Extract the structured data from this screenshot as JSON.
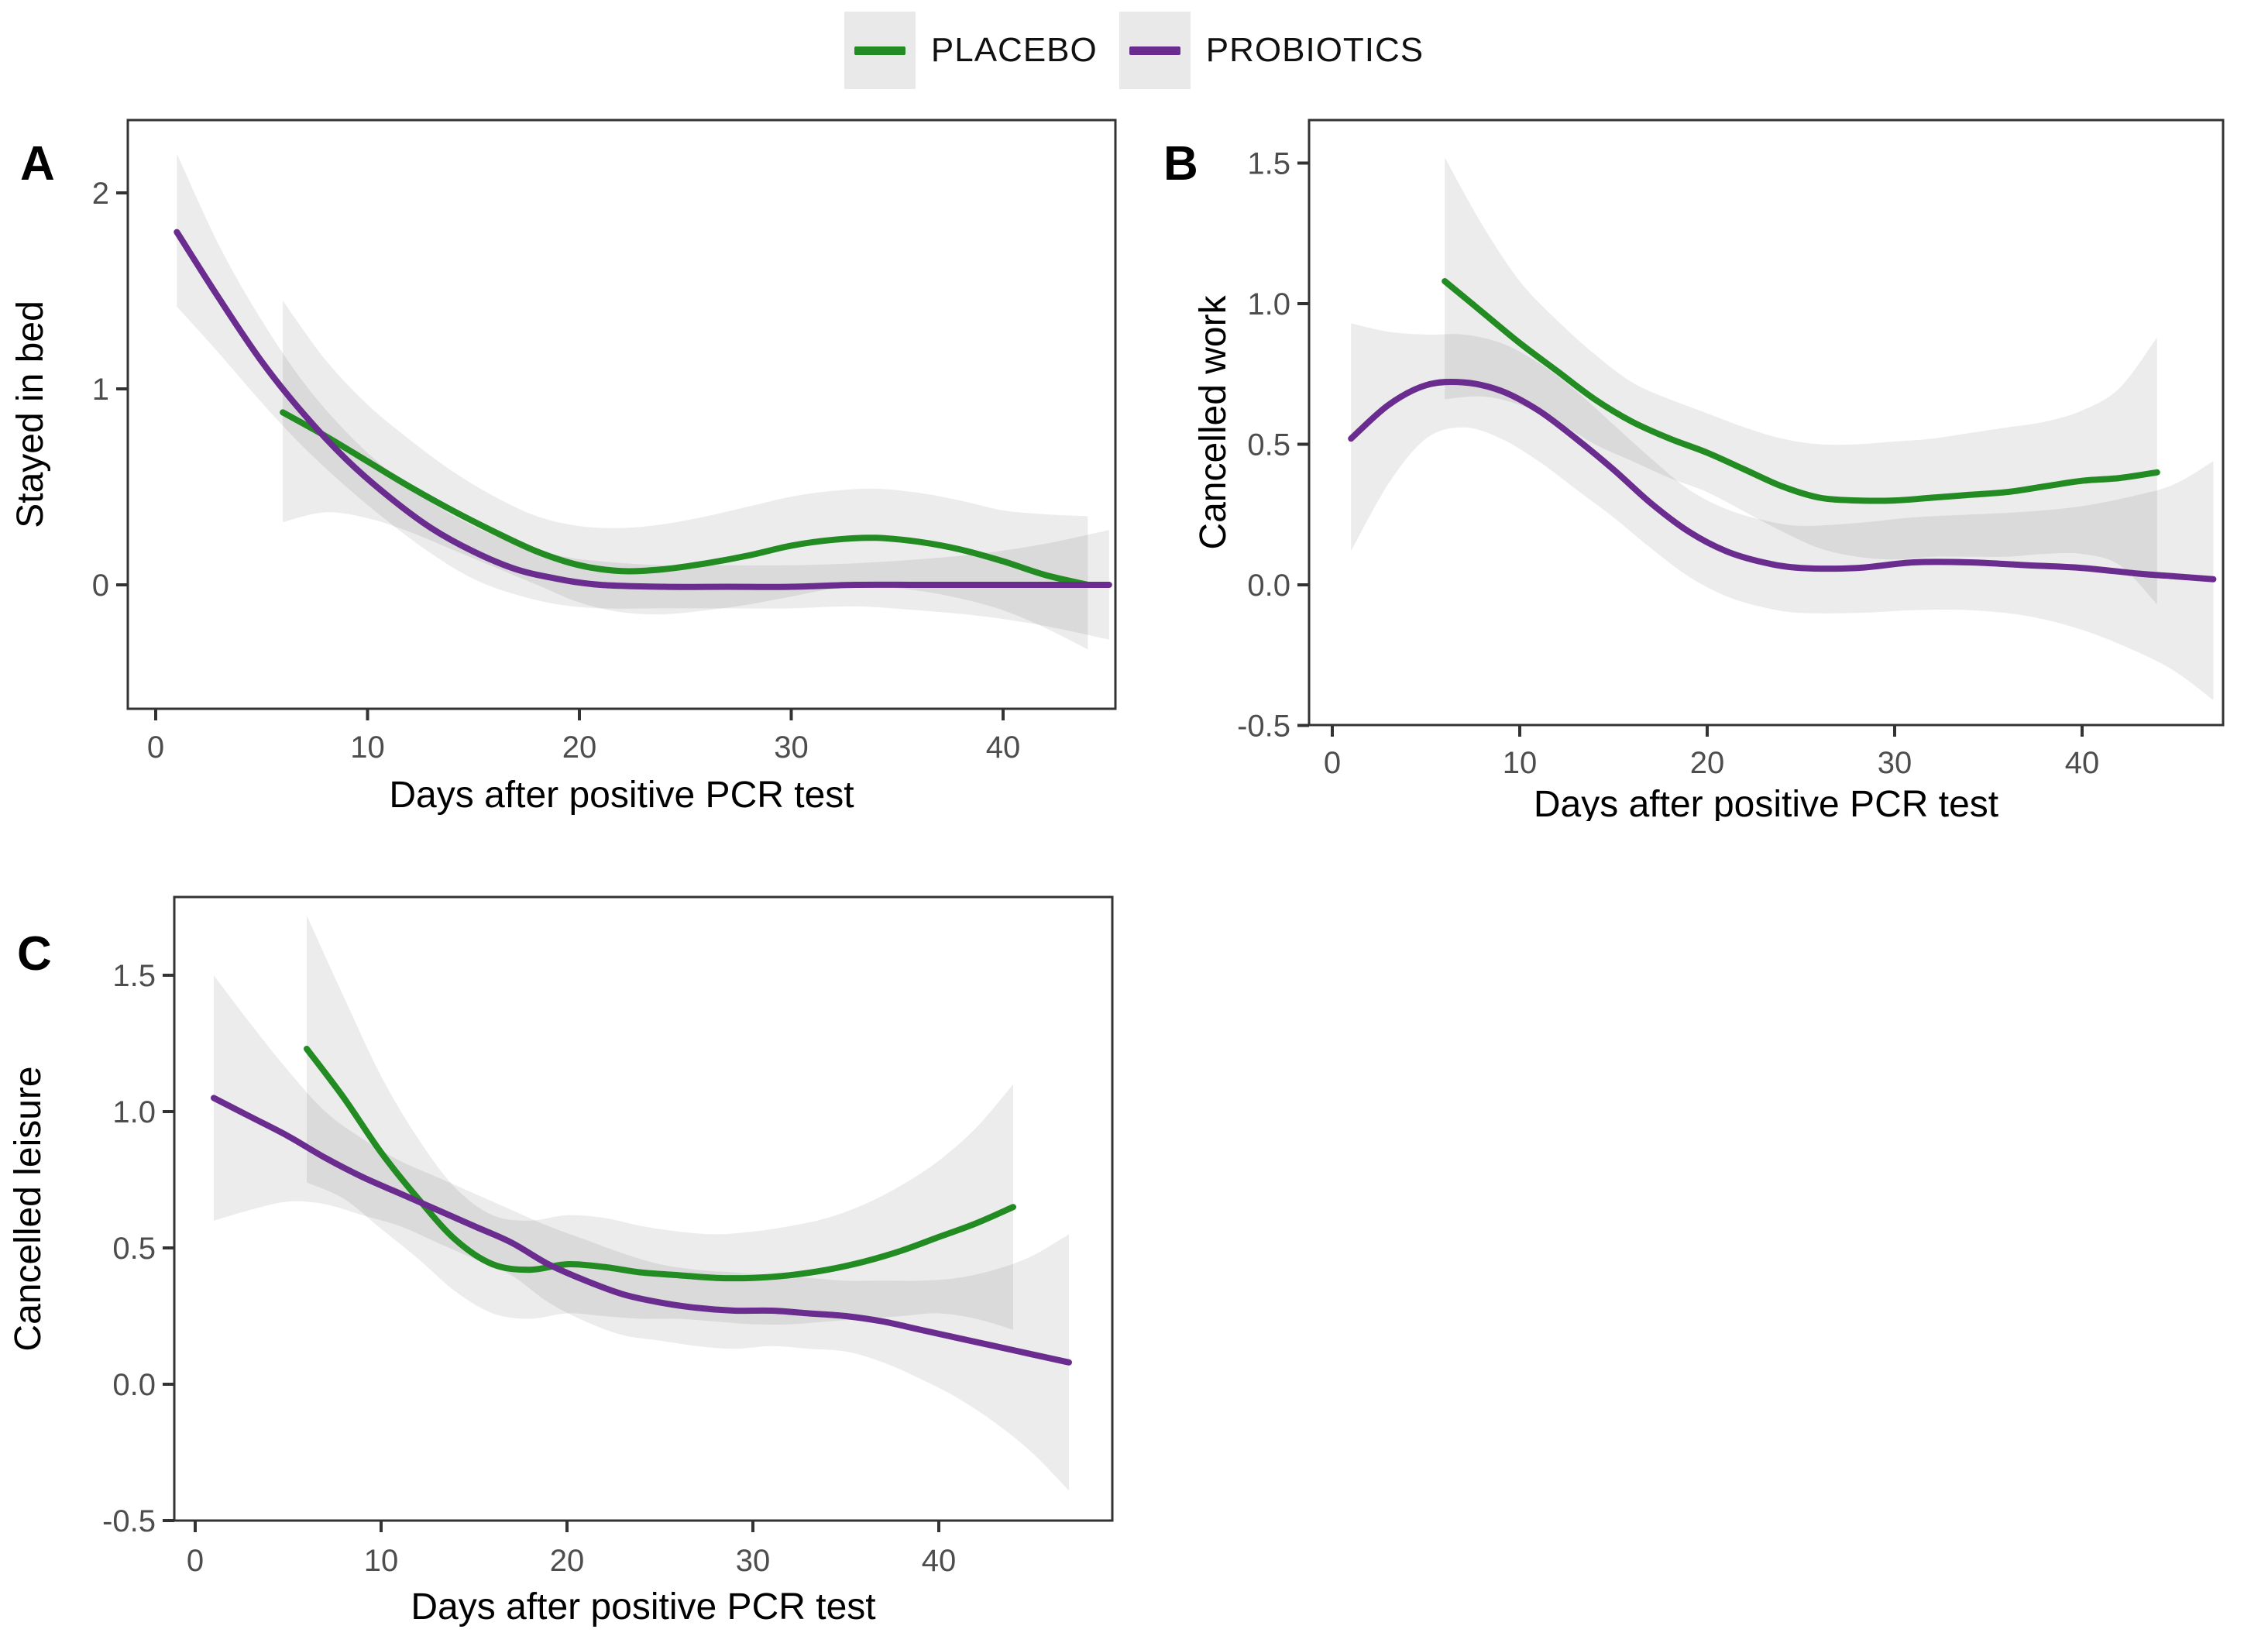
{
  "figure": {
    "background": "#ffffff",
    "legend_position": "top-center"
  },
  "legend": {
    "key_background": "#e9e9e9",
    "items": [
      {
        "label": "PLACEBO",
        "color": "#228B22"
      },
      {
        "label": "PROBIOTICS",
        "color": "#6A2D8F"
      }
    ]
  },
  "style": {
    "axis_color": "#333333",
    "tick_label_color": "#4d4d4d",
    "title_color": "#000000",
    "ribbon_color": "#000000",
    "ribbon_opacity": 0.075,
    "line_width": 8
  },
  "chart_data": [
    {
      "id": "A",
      "type": "line",
      "panel_label": "A",
      "ylabel": "Stayed in bed",
      "xlabel": "Days after positive PCR test",
      "x_ticks": [
        0,
        10,
        20,
        30,
        40
      ],
      "x_tick_labels": [
        "0",
        "10",
        "20",
        "30",
        "40"
      ],
      "y_ticks": [
        0,
        1,
        2
      ],
      "y_tick_labels": [
        "0",
        "1",
        "2"
      ],
      "xlim": [
        -1.5,
        48.5
      ],
      "ylim": [
        -0.63,
        2.37
      ],
      "grid": false,
      "series": [
        {
          "name": "PLACEBO",
          "color": "#228B22",
          "x": [
            6,
            8,
            10,
            12,
            14,
            16,
            18,
            20,
            22,
            24,
            26,
            28,
            30,
            32,
            34,
            36,
            38,
            40,
            42,
            44
          ],
          "y": [
            0.88,
            0.76,
            0.63,
            0.5,
            0.38,
            0.27,
            0.17,
            0.1,
            0.07,
            0.08,
            0.11,
            0.15,
            0.2,
            0.23,
            0.24,
            0.22,
            0.18,
            0.12,
            0.05,
            0.0
          ],
          "ci_upper": [
            1.45,
            1.15,
            0.92,
            0.74,
            0.58,
            0.45,
            0.35,
            0.3,
            0.29,
            0.31,
            0.35,
            0.4,
            0.45,
            0.48,
            0.49,
            0.47,
            0.43,
            0.38,
            0.36,
            0.35
          ],
          "ci_lower": [
            0.32,
            0.37,
            0.34,
            0.27,
            0.18,
            0.09,
            0.0,
            -0.09,
            -0.14,
            -0.15,
            -0.13,
            -0.1,
            -0.06,
            -0.02,
            -0.01,
            -0.03,
            -0.07,
            -0.13,
            -0.22,
            -0.33
          ]
        },
        {
          "name": "PROBIOTICS",
          "color": "#6A2D8F",
          "x": [
            1,
            3,
            5,
            7,
            9,
            11,
            13,
            15,
            17,
            19,
            21,
            24,
            27,
            30,
            33,
            36,
            39,
            42,
            45
          ],
          "y": [
            1.8,
            1.46,
            1.14,
            0.87,
            0.64,
            0.45,
            0.29,
            0.17,
            0.08,
            0.03,
            0.0,
            -0.01,
            -0.01,
            -0.01,
            0.0,
            0.0,
            0.0,
            0.0,
            0.0
          ],
          "ci_upper": [
            2.2,
            1.73,
            1.35,
            1.03,
            0.78,
            0.58,
            0.42,
            0.3,
            0.21,
            0.15,
            0.12,
            0.1,
            0.1,
            0.1,
            0.11,
            0.13,
            0.16,
            0.21,
            0.28
          ],
          "ci_lower": [
            1.42,
            1.18,
            0.93,
            0.7,
            0.5,
            0.32,
            0.16,
            0.03,
            -0.05,
            -0.1,
            -0.12,
            -0.12,
            -0.12,
            -0.12,
            -0.11,
            -0.13,
            -0.16,
            -0.21,
            -0.28
          ]
        }
      ]
    },
    {
      "id": "B",
      "type": "line",
      "panel_label": "B",
      "ylabel": "Cancelled work",
      "xlabel": "Days after positive PCR test",
      "x_ticks": [
        0,
        10,
        20,
        30,
        40
      ],
      "x_tick_labels": [
        "0",
        "10",
        "20",
        "30",
        "40"
      ],
      "y_ticks": [
        -0.5,
        0.0,
        0.5,
        1.0,
        1.5
      ],
      "y_tick_labels": [
        "-0.5",
        "0.0",
        "0.5",
        "1.0",
        "1.5"
      ],
      "xlim": [
        -1.5,
        48.5
      ],
      "ylim": [
        -0.5,
        1.65
      ],
      "grid": false,
      "series": [
        {
          "name": "PLACEBO",
          "color": "#228B22",
          "x": [
            6,
            8,
            10,
            12,
            14,
            16,
            18,
            20,
            22,
            24,
            26,
            28,
            30,
            32,
            34,
            36,
            38,
            40,
            42,
            44
          ],
          "y": [
            1.08,
            0.97,
            0.86,
            0.76,
            0.66,
            0.58,
            0.52,
            0.47,
            0.41,
            0.35,
            0.31,
            0.3,
            0.3,
            0.31,
            0.32,
            0.33,
            0.35,
            0.37,
            0.38,
            0.4
          ],
          "ci_upper": [
            1.52,
            1.28,
            1.08,
            0.94,
            0.82,
            0.72,
            0.66,
            0.61,
            0.56,
            0.52,
            0.5,
            0.5,
            0.51,
            0.52,
            0.54,
            0.56,
            0.58,
            0.62,
            0.7,
            0.88
          ],
          "ci_lower": [
            0.66,
            0.67,
            0.64,
            0.58,
            0.5,
            0.44,
            0.38,
            0.33,
            0.26,
            0.19,
            0.13,
            0.1,
            0.09,
            0.1,
            0.1,
            0.1,
            0.11,
            0.11,
            0.07,
            -0.07
          ]
        },
        {
          "name": "PROBIOTICS",
          "color": "#6A2D8F",
          "x": [
            1,
            3,
            5,
            7,
            9,
            11,
            13,
            15,
            17,
            19,
            21,
            23,
            25,
            28,
            31,
            34,
            37,
            40,
            43,
            45,
            47
          ],
          "y": [
            0.52,
            0.64,
            0.71,
            0.72,
            0.69,
            0.62,
            0.52,
            0.41,
            0.29,
            0.19,
            0.12,
            0.08,
            0.06,
            0.06,
            0.08,
            0.08,
            0.07,
            0.06,
            0.04,
            0.03,
            0.02
          ],
          "ci_upper": [
            0.93,
            0.9,
            0.89,
            0.89,
            0.86,
            0.79,
            0.69,
            0.57,
            0.45,
            0.34,
            0.27,
            0.23,
            0.21,
            0.22,
            0.24,
            0.25,
            0.26,
            0.28,
            0.32,
            0.36,
            0.44
          ],
          "ci_lower": [
            0.12,
            0.36,
            0.52,
            0.56,
            0.52,
            0.44,
            0.34,
            0.24,
            0.13,
            0.03,
            -0.04,
            -0.08,
            -0.1,
            -0.1,
            -0.09,
            -0.09,
            -0.11,
            -0.16,
            -0.24,
            -0.31,
            -0.41
          ]
        }
      ]
    },
    {
      "id": "C",
      "type": "line",
      "panel_label": "C",
      "ylabel": "Cancelled leisure",
      "xlabel": "Days after positive PCR test",
      "x_ticks": [
        0,
        10,
        20,
        30,
        40
      ],
      "x_tick_labels": [
        "0",
        "10",
        "20",
        "30",
        "40"
      ],
      "y_ticks": [
        -0.5,
        0.0,
        0.5,
        1.0,
        1.5
      ],
      "y_tick_labels": [
        "-0.5",
        "0.0",
        "0.5",
        "1.0",
        "1.5"
      ],
      "xlim": [
        -1.5,
        48.5
      ],
      "ylim": [
        -0.55,
        1.79
      ],
      "grid": false,
      "series": [
        {
          "name": "PLACEBO",
          "color": "#228B22",
          "x": [
            6,
            8,
            10,
            12,
            14,
            16,
            18,
            20,
            22,
            24,
            26,
            28,
            30,
            32,
            34,
            36,
            38,
            40,
            42,
            44
          ],
          "y": [
            1.23,
            1.05,
            0.85,
            0.68,
            0.53,
            0.44,
            0.42,
            0.44,
            0.43,
            0.41,
            0.4,
            0.39,
            0.39,
            0.4,
            0.42,
            0.45,
            0.49,
            0.54,
            0.59,
            0.65
          ],
          "ci_upper": [
            1.72,
            1.42,
            1.13,
            0.9,
            0.72,
            0.62,
            0.6,
            0.62,
            0.61,
            0.58,
            0.56,
            0.55,
            0.56,
            0.58,
            0.61,
            0.66,
            0.73,
            0.82,
            0.94,
            1.1
          ],
          "ci_lower": [
            0.74,
            0.68,
            0.57,
            0.46,
            0.34,
            0.26,
            0.24,
            0.26,
            0.25,
            0.24,
            0.24,
            0.23,
            0.22,
            0.22,
            0.23,
            0.24,
            0.25,
            0.26,
            0.24,
            0.2
          ]
        },
        {
          "name": "PROBIOTICS",
          "color": "#6A2D8F",
          "x": [
            1,
            3,
            5,
            7,
            9,
            11,
            13,
            15,
            17,
            19,
            21,
            23,
            25,
            27,
            29,
            31,
            33,
            35,
            37,
            39,
            41,
            43,
            45,
            47
          ],
          "y": [
            1.05,
            0.98,
            0.91,
            0.83,
            0.76,
            0.7,
            0.64,
            0.58,
            0.52,
            0.44,
            0.38,
            0.33,
            0.3,
            0.28,
            0.27,
            0.27,
            0.26,
            0.25,
            0.23,
            0.2,
            0.17,
            0.14,
            0.11,
            0.08
          ],
          "ci_upper": [
            1.5,
            1.32,
            1.15,
            1.0,
            0.9,
            0.82,
            0.76,
            0.7,
            0.64,
            0.58,
            0.53,
            0.48,
            0.44,
            0.42,
            0.41,
            0.4,
            0.39,
            0.38,
            0.38,
            0.38,
            0.39,
            0.42,
            0.47,
            0.55
          ],
          "ci_lower": [
            0.6,
            0.64,
            0.67,
            0.66,
            0.62,
            0.58,
            0.52,
            0.46,
            0.4,
            0.3,
            0.23,
            0.18,
            0.16,
            0.14,
            0.13,
            0.14,
            0.13,
            0.12,
            0.08,
            0.02,
            -0.05,
            -0.14,
            -0.25,
            -0.39
          ]
        }
      ]
    }
  ]
}
